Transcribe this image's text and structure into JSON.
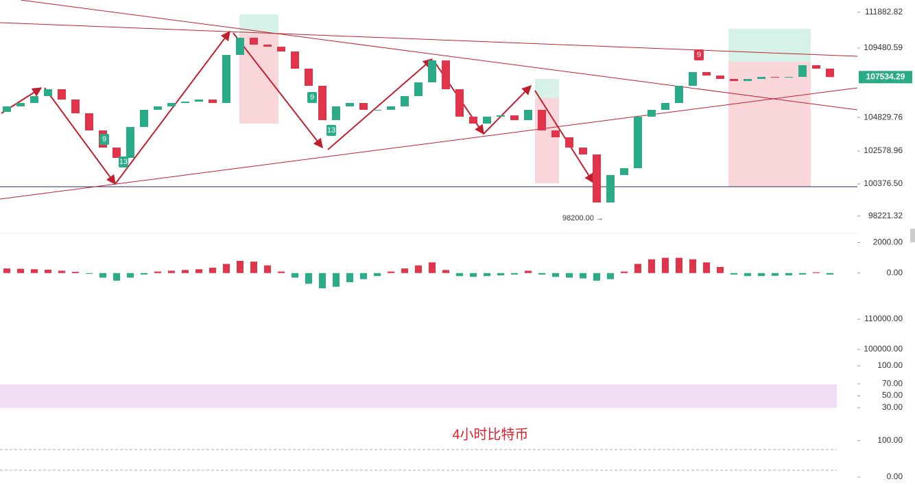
{
  "watermark": "4小时比特币",
  "chart_data": [
    {
      "type": "candlestick",
      "open": [
        105200,
        105570,
        105800,
        106260,
        106720,
        106030,
        105110,
        103960,
        102810,
        102120,
        104190,
        105340,
        105570,
        105800,
        105890,
        106030,
        105800,
        109020,
        110170,
        109710,
        109570,
        109250,
        108100,
        106950,
        104650,
        105570,
        105800,
        105340,
        105340,
        105570,
        106260,
        107180,
        108650,
        106720,
        104880,
        104420,
        104880,
        104970,
        104650,
        105340,
        103960,
        103500,
        102810,
        102350,
        99130,
        100970,
        101430,
        104880,
        105340,
        105800,
        106950,
        107870,
        107640,
        107410,
        107270,
        107410,
        107550,
        107500,
        107550,
        108330,
        108100
      ],
      "close": [
        105570,
        105800,
        106260,
        106720,
        106030,
        105110,
        103960,
        102810,
        102120,
        104190,
        105340,
        105570,
        105800,
        105890,
        106030,
        105800,
        109020,
        110170,
        109710,
        109570,
        109250,
        108100,
        106950,
        104650,
        105570,
        105800,
        105340,
        105340,
        105570,
        106260,
        107180,
        108650,
        106720,
        104880,
        104420,
        104880,
        104970,
        104650,
        105340,
        103960,
        103500,
        102810,
        102350,
        99130,
        100970,
        101430,
        104880,
        105340,
        105800,
        106950,
        107870,
        107640,
        107410,
        107270,
        107410,
        107550,
        107500,
        107550,
        108330,
        108100,
        107534.29
      ],
      "up_color": "#2bab88",
      "down_color": "#e0344a",
      "ylim": [
        97060,
        112700
      ],
      "yticks": [
        {
          "value": 111882.82,
          "label": "111882.82"
        },
        {
          "value": 109480.59,
          "label": "109480.59"
        },
        {
          "value": 104829.76,
          "label": "104829.76"
        },
        {
          "value": 102578.96,
          "label": "102578.96"
        },
        {
          "value": 100376.5,
          "label": "100376.50"
        },
        {
          "value": 98221.32,
          "label": "98221.32"
        }
      ],
      "annotations": [
        "98200.00 →",
        "9",
        "13",
        "9",
        "13",
        "9"
      ]
    },
    {
      "type": "histogram",
      "values": [
        300,
        280,
        250,
        220,
        150,
        80,
        -50,
        -300,
        -500,
        -300,
        -100,
        100,
        150,
        200,
        250,
        350,
        600,
        800,
        750,
        500,
        100,
        -300,
        -700,
        -1000,
        -900,
        -600,
        -400,
        -200,
        100,
        300,
        500,
        700,
        200,
        -200,
        -250,
        -200,
        -150,
        -100,
        150,
        -100,
        -250,
        -300,
        -350,
        -500,
        -400,
        100,
        600,
        900,
        1000,
        1000,
        900,
        700,
        400,
        -100,
        -200,
        -200,
        -180,
        -150,
        -100,
        50,
        -100
      ],
      "ylim": [
        -1900,
        2600
      ],
      "yticks": [
        {
          "value": 2000,
          "label": "2000.00"
        },
        {
          "value": 0,
          "label": "0.00"
        }
      ]
    },
    {
      "type": "band",
      "ylim": [
        96360,
        115680
      ],
      "yticks": [
        {
          "value": 110000,
          "label": "110000.00"
        },
        {
          "value": 100000,
          "label": "100000.00"
        }
      ]
    },
    {
      "type": "band",
      "ylim": [
        11.6,
        109.2
      ],
      "yticks": [
        {
          "value": 100,
          "label": "100.00"
        },
        {
          "value": 70,
          "label": "70.00"
        },
        {
          "value": 50,
          "label": "50.00"
        },
        {
          "value": 30,
          "label": "30.00"
        }
      ]
    },
    {
      "type": "band",
      "ylim": [
        -24.5,
        160
      ],
      "yticks": [
        {
          "value": 100,
          "label": "100.00"
        },
        {
          "value": 0,
          "label": "0.00"
        }
      ]
    }
  ]
}
